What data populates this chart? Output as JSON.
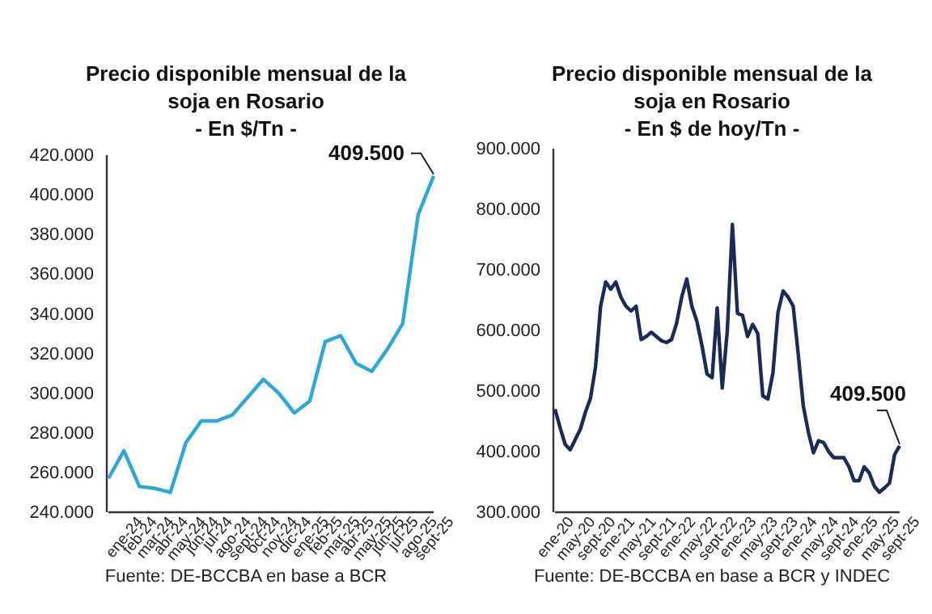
{
  "chart_data": [
    {
      "type": "line",
      "title": "Precio disponible mensual de la soja en Rosario",
      "subtitle": "- En $/Tn -",
      "categories": [
        null,
        "ene-24",
        "feb-24",
        "mar-24",
        "abr-24",
        "may-24",
        "jun-24",
        "jul-24",
        "ago-24",
        "sept-24",
        "oct-24",
        "nov-24",
        "dic-24",
        "ene-25",
        "feb-25",
        "mar-25",
        "abr-25",
        "may-25",
        "jun-25",
        "jul-25",
        "ago-25",
        "sept-25"
      ],
      "series": [
        {
          "color": "#29a9d8",
          "values": [
            257000,
            271000,
            253000,
            252000,
            250000,
            275000,
            286000,
            286000,
            289000,
            298000,
            307000,
            300000,
            290000,
            296000,
            326000,
            329000,
            315000,
            311000,
            322000,
            335000,
            390000,
            409500
          ]
        }
      ],
      "ylim": [
        240000,
        420000
      ],
      "yticks": [
        {
          "value": 240000,
          "label": "240.000"
        },
        {
          "value": 260000,
          "label": "260.000"
        },
        {
          "value": 280000,
          "label": "280.000"
        },
        {
          "value": 300000,
          "label": "300.000"
        },
        {
          "value": 320000,
          "label": "320.000"
        },
        {
          "value": 340000,
          "label": "340.000"
        },
        {
          "value": 360000,
          "label": "360.000"
        },
        {
          "value": 380000,
          "label": "380.000"
        },
        {
          "value": 400000,
          "label": "400.000"
        },
        {
          "value": 420000,
          "label": "420.000"
        }
      ],
      "annotations": [
        {
          "text": "409.500",
          "x": "sept-25",
          "y": 409500
        },
        "Fuente: DE-BCCBA en base a BCR"
      ]
    },
    {
      "type": "line",
      "title": "Precio disponible mensual de la soja en Rosario",
      "subtitle": "- En $ de hoy/Tn -",
      "categories": [
        "ene-20",
        null,
        null,
        null,
        "may-20",
        null,
        null,
        null,
        "sept-20",
        null,
        null,
        null,
        "ene-21",
        null,
        null,
        null,
        "may-21",
        null,
        null,
        null,
        "sept-21",
        null,
        null,
        null,
        "ene-22",
        null,
        null,
        null,
        "may-22",
        null,
        null,
        null,
        "sept-22",
        null,
        null,
        null,
        "ene-23",
        null,
        null,
        null,
        "may-23",
        null,
        null,
        null,
        "sept-23",
        null,
        null,
        null,
        "ene-24",
        null,
        null,
        null,
        "may-24",
        null,
        null,
        null,
        "sept-24",
        null,
        null,
        null,
        "ene-25",
        null,
        null,
        null,
        "may-25",
        null,
        null,
        null,
        "sept-25"
      ],
      "series": [
        {
          "color": "#1a2b55",
          "values": [
            470000,
            440000,
            412000,
            403000,
            420000,
            437000,
            465000,
            488000,
            540000,
            640000,
            680000,
            668000,
            680000,
            655000,
            640000,
            632000,
            640000,
            585000,
            590000,
            597000,
            590000,
            583000,
            580000,
            585000,
            612000,
            655000,
            685000,
            640000,
            615000,
            575000,
            528000,
            522000,
            637000,
            505000,
            600000,
            775000,
            628000,
            625000,
            590000,
            610000,
            595000,
            492000,
            487000,
            530000,
            630000,
            665000,
            655000,
            640000,
            560000,
            475000,
            432000,
            398000,
            418000,
            415000,
            400000,
            390000,
            390000,
            390000,
            375000,
            352000,
            352000,
            375000,
            365000,
            343000,
            333000,
            340000,
            348000,
            395000,
            409500
          ]
        }
      ],
      "ylim": [
        300000,
        900000
      ],
      "yticks": [
        {
          "value": 300000,
          "label": "300.000"
        },
        {
          "value": 400000,
          "label": "400.000"
        },
        {
          "value": 500000,
          "label": "500.000"
        },
        {
          "value": 600000,
          "label": "600.000"
        },
        {
          "value": 700000,
          "label": "700.000"
        },
        {
          "value": 800000,
          "label": "800.000"
        },
        {
          "value": 900000,
          "label": "900.000"
        }
      ],
      "annotations": [
        {
          "text": "409.500",
          "x": "sept-25",
          "y": 409500
        },
        "Fuente: DE-BCCBA en base a BCR y INDEC"
      ]
    }
  ]
}
